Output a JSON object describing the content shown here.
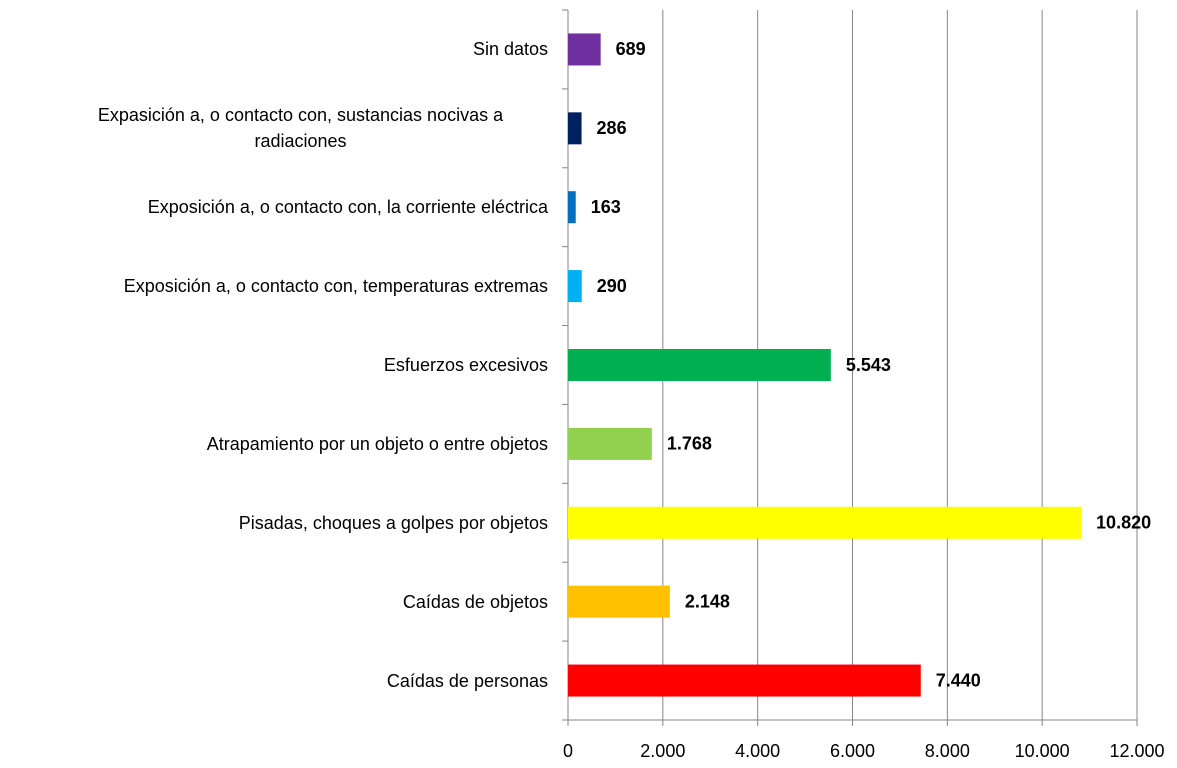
{
  "chart_data": {
    "type": "barh",
    "categories": [
      "Sin datos",
      "Expasición a, o contacto con, sustancias nocivas a radiaciones",
      "Exposición a, o contacto con, la corriente eléctrica",
      "Exposición a, o contacto con, temperaturas extremas",
      "Esfuerzos excesivos",
      "Atrapamiento por un objeto o entre objetos",
      "Pisadas, choques a golpes por objetos",
      "Caídas de objetos",
      "Caídas de personas"
    ],
    "values": [
      689,
      286,
      163,
      290,
      5543,
      1768,
      10820,
      2148,
      7440
    ],
    "value_labels": [
      "689",
      "286",
      "163",
      "290",
      "5.543",
      "1.768",
      "10.820",
      "2.148",
      "7.440"
    ],
    "colors": [
      "#7030a0",
      "#002060",
      "#0070c0",
      "#00b0f0",
      "#00b050",
      "#92d050",
      "#ffff00",
      "#ffc000",
      "#ff0000"
    ],
    "xlim": [
      0,
      12000
    ],
    "xticks": [
      0,
      {
        "value": 2000,
        "label": "2.000"
      },
      {
        "value": 4000,
        "label": "4.000"
      },
      {
        "value": 6000,
        "label": "6.000"
      },
      {
        "value": 8000,
        "label": "8.000"
      },
      {
        "value": 10000,
        "label": "10.000"
      },
      {
        "value": 12000,
        "label": "12.000"
      }
    ],
    "grid": true
  }
}
